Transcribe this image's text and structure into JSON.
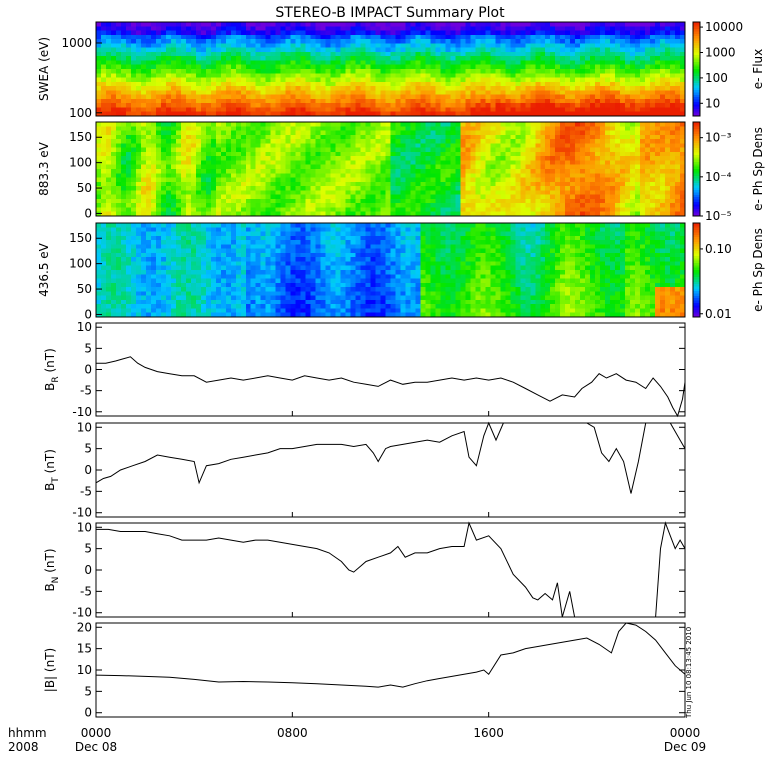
{
  "chart_data": {
    "type": "line",
    "title": "STEREO-B IMPACT Summary Plot",
    "stamp": "Thu Jun 10 08:13:45 2010",
    "x_axis": {
      "corner_labels": [
        "hhmm",
        "2008"
      ],
      "ticks": [
        {
          "hour": 0,
          "top": "0000",
          "bottom": "Dec 08"
        },
        {
          "hour": 8,
          "top": "0800",
          "bottom": ""
        },
        {
          "hour": 16,
          "top": "1600",
          "bottom": ""
        },
        {
          "hour": 24,
          "top": "0000",
          "bottom": "Dec 09"
        }
      ],
      "range_hours": [
        0,
        24
      ]
    },
    "spectrograms": [
      {
        "ylabel": "SWEA (eV)",
        "log_y": true,
        "ylim": [
          90,
          2000
        ],
        "yticks": [
          {
            "v": 100,
            "t": "100"
          },
          {
            "v": 1000,
            "t": "1000"
          }
        ],
        "colorbar_label": "e- Flux",
        "colorbar_ticks": [
          "10",
          "100",
          "1000",
          "10000"
        ],
        "colorbar_log_range": [
          0.5,
          4.2
        ],
        "colorbar_tick_exponents": [
          1,
          2,
          3,
          4
        ]
      },
      {
        "ylabel": "883.3 eV",
        "log_y": false,
        "ylim": [
          -5,
          180
        ],
        "yticks": [
          {
            "v": 0,
            "t": "0"
          },
          {
            "v": 50,
            "t": "50"
          },
          {
            "v": 100,
            "t": "100"
          },
          {
            "v": 150,
            "t": "150"
          }
        ],
        "colorbar_label": "e- Ph Sp Dens",
        "colorbar_ticks": [
          "10⁻⁵",
          "10⁻⁴",
          "10⁻³"
        ],
        "colorbar_log_range": [
          -5,
          -2.6
        ],
        "colorbar_tick_exponents": [
          -5,
          -4,
          -3
        ]
      },
      {
        "ylabel": "436.5 eV",
        "log_y": false,
        "ylim": [
          -5,
          180
        ],
        "yticks": [
          {
            "v": 0,
            "t": "0"
          },
          {
            "v": 50,
            "t": "50"
          },
          {
            "v": 100,
            "t": "100"
          },
          {
            "v": 150,
            "t": "150"
          }
        ],
        "colorbar_label": "e- Ph Sp Dens",
        "colorbar_ticks": [
          "0.01",
          "0.10"
        ],
        "colorbar_log_range": [
          -2.05,
          -0.6
        ],
        "colorbar_tick_exponents": [
          -2,
          -1
        ]
      }
    ],
    "line_panels": [
      {
        "name": "BR",
        "ylabel": "B",
        "ylabel_sub": "R",
        "ylabel_unit": "(nT)",
        "ylim": [
          -11,
          11
        ],
        "yticks": [
          -10,
          -5,
          0,
          5,
          10
        ],
        "x": [
          0,
          0.4,
          0.8,
          1.1,
          1.4,
          1.7,
          2.0,
          2.5,
          3.0,
          3.5,
          4.0,
          4.5,
          5.0,
          5.5,
          6.0,
          6.5,
          7.0,
          7.5,
          8.0,
          8.5,
          9.0,
          9.5,
          10.0,
          10.5,
          11.0,
          11.5,
          12.0,
          12.5,
          13.0,
          13.5,
          14.0,
          14.5,
          15.0,
          15.5,
          16.0,
          16.5,
          17.0,
          17.5,
          18.0,
          18.5,
          19.0,
          19.5,
          19.8,
          20.2,
          20.5,
          20.8,
          21.2,
          21.6,
          22.0,
          22.4,
          22.7,
          23.0,
          23.3,
          23.5,
          23.7,
          23.9,
          24.0
        ],
        "y": [
          1.5,
          1.5,
          2.0,
          2.5,
          3.0,
          1.5,
          0.5,
          -0.5,
          -1.0,
          -1.5,
          -1.5,
          -3.0,
          -2.5,
          -2.0,
          -2.5,
          -2.0,
          -1.5,
          -2.0,
          -2.5,
          -1.5,
          -2.0,
          -2.5,
          -2.0,
          -3.0,
          -3.5,
          -4.0,
          -2.5,
          -3.5,
          -3.0,
          -3.0,
          -2.5,
          -2.0,
          -2.5,
          -2.0,
          -2.5,
          -2.0,
          -3.0,
          -4.5,
          -6.0,
          -7.5,
          -6.0,
          -6.5,
          -4.5,
          -3.0,
          -1.0,
          -2.0,
          -1.0,
          -2.5,
          -3.0,
          -4.5,
          -2.0,
          -4.0,
          -6.5,
          -9.0,
          -11.0,
          -7.0,
          -3.0
        ]
      },
      {
        "name": "BT",
        "ylabel": "B",
        "ylabel_sub": "T",
        "ylabel_unit": "(nT)",
        "ylim": [
          -11,
          11
        ],
        "yticks": [
          -10,
          -5,
          0,
          5,
          10
        ],
        "x": [
          0,
          0.3,
          0.6,
          1.0,
          1.5,
          2.0,
          2.5,
          3.0,
          3.5,
          4.0,
          4.2,
          4.5,
          5.0,
          5.5,
          6.0,
          6.5,
          7.0,
          7.5,
          8.0,
          8.5,
          9.0,
          9.5,
          10.0,
          10.5,
          11.0,
          11.3,
          11.5,
          11.8,
          12.0,
          12.5,
          13.0,
          13.5,
          14.0,
          14.5,
          15.0,
          15.2,
          15.5,
          15.8,
          16.0,
          16.3,
          16.6,
          17.0,
          17.5,
          18.0,
          18.5,
          19.0,
          19.5,
          20.0,
          20.3,
          20.6,
          20.9,
          21.2,
          21.5,
          21.8,
          22.1,
          22.4,
          22.6,
          22.8,
          23.1,
          23.4,
          23.7,
          24.0
        ],
        "y": [
          -3.0,
          -2.0,
          -1.5,
          0.0,
          1.0,
          2.0,
          3.5,
          3.0,
          2.5,
          2.0,
          -3.0,
          1.0,
          1.5,
          2.5,
          3.0,
          3.5,
          4.0,
          5.0,
          5.0,
          5.5,
          6.0,
          6.0,
          6.0,
          5.5,
          6.0,
          4.0,
          2.0,
          5.0,
          5.5,
          6.0,
          6.5,
          7.0,
          6.5,
          8.0,
          9.0,
          3.0,
          1.0,
          8.0,
          11.0,
          7.0,
          11.0,
          11.0,
          11.0,
          11.0,
          11.0,
          11.0,
          11.0,
          11.0,
          10.0,
          4.0,
          2.0,
          5.0,
          2.0,
          -5.5,
          2.0,
          11.0,
          11.0,
          11.0,
          11.0,
          11.0,
          8.0,
          5.0
        ]
      },
      {
        "name": "BN",
        "ylabel": "B",
        "ylabel_sub": "N",
        "ylabel_unit": "(nT)",
        "ylim": [
          -11,
          11
        ],
        "yticks": [
          -10,
          -5,
          0,
          5,
          10
        ],
        "x": [
          0,
          0.5,
          1.0,
          1.5,
          2.0,
          2.5,
          3.0,
          3.5,
          4.0,
          4.5,
          5.0,
          5.5,
          6.0,
          6.5,
          7.0,
          7.5,
          8.0,
          8.5,
          9.0,
          9.5,
          10.0,
          10.3,
          10.5,
          10.8,
          11.0,
          11.5,
          12.0,
          12.3,
          12.6,
          13.0,
          13.5,
          14.0,
          14.5,
          15.0,
          15.2,
          15.5,
          16.0,
          16.5,
          17.0,
          17.5,
          17.8,
          18.0,
          18.3,
          18.6,
          18.8,
          19.0,
          19.3,
          19.5,
          19.8,
          20.0,
          20.3,
          20.6,
          21.0,
          21.5,
          22.0,
          22.5,
          22.8,
          23.0,
          23.2,
          23.4,
          23.6,
          23.8,
          24.0
        ],
        "y": [
          9.5,
          9.5,
          9.0,
          9.0,
          9.0,
          8.5,
          8.0,
          7.0,
          7.0,
          7.0,
          7.5,
          7.0,
          6.5,
          7.0,
          7.0,
          6.5,
          6.0,
          5.5,
          5.0,
          4.0,
          2.0,
          0.0,
          -0.5,
          1.0,
          2.0,
          3.0,
          4.0,
          5.5,
          3.0,
          4.0,
          4.0,
          5.0,
          5.5,
          5.5,
          11.0,
          7.0,
          8.0,
          5.0,
          -1.0,
          -4.0,
          -6.5,
          -7.0,
          -5.5,
          -7.0,
          -3.0,
          -11.0,
          -5.0,
          -11.0,
          -11.0,
          -11.0,
          -11.0,
          -11.0,
          -11.0,
          -11.0,
          -11.0,
          -11.0,
          -11.0,
          5.0,
          11.0,
          8.0,
          5.0,
          7.0,
          5.0
        ]
      },
      {
        "name": "Bmag",
        "ylabel": "|B|",
        "ylabel_sub": "",
        "ylabel_unit": "(nT)",
        "ylim": [
          -1,
          21
        ],
        "yticks": [
          0,
          5,
          10,
          15,
          20
        ],
        "x": [
          0,
          1.0,
          2.0,
          3.0,
          4.0,
          5.0,
          6.0,
          7.0,
          8.0,
          9.0,
          10.0,
          11.0,
          11.5,
          12.0,
          12.5,
          13.0,
          13.5,
          14.0,
          14.5,
          15.0,
          15.5,
          15.8,
          16.0,
          16.5,
          17.0,
          17.5,
          18.0,
          18.5,
          19.0,
          19.5,
          20.0,
          20.5,
          21.0,
          21.3,
          21.6,
          22.0,
          22.4,
          22.8,
          23.2,
          23.6,
          24.0
        ],
        "y": [
          8.8,
          8.7,
          8.5,
          8.3,
          7.8,
          7.2,
          7.3,
          7.2,
          7.0,
          6.8,
          6.5,
          6.2,
          6.0,
          6.5,
          6.0,
          6.8,
          7.5,
          8.0,
          8.5,
          9.0,
          9.5,
          10.0,
          9.0,
          13.5,
          14.0,
          15.0,
          15.5,
          16.0,
          16.5,
          17.0,
          17.5,
          16.0,
          14.0,
          19.0,
          21.0,
          20.5,
          19.0,
          17.0,
          14.0,
          11.0,
          9.0
        ]
      }
    ]
  }
}
